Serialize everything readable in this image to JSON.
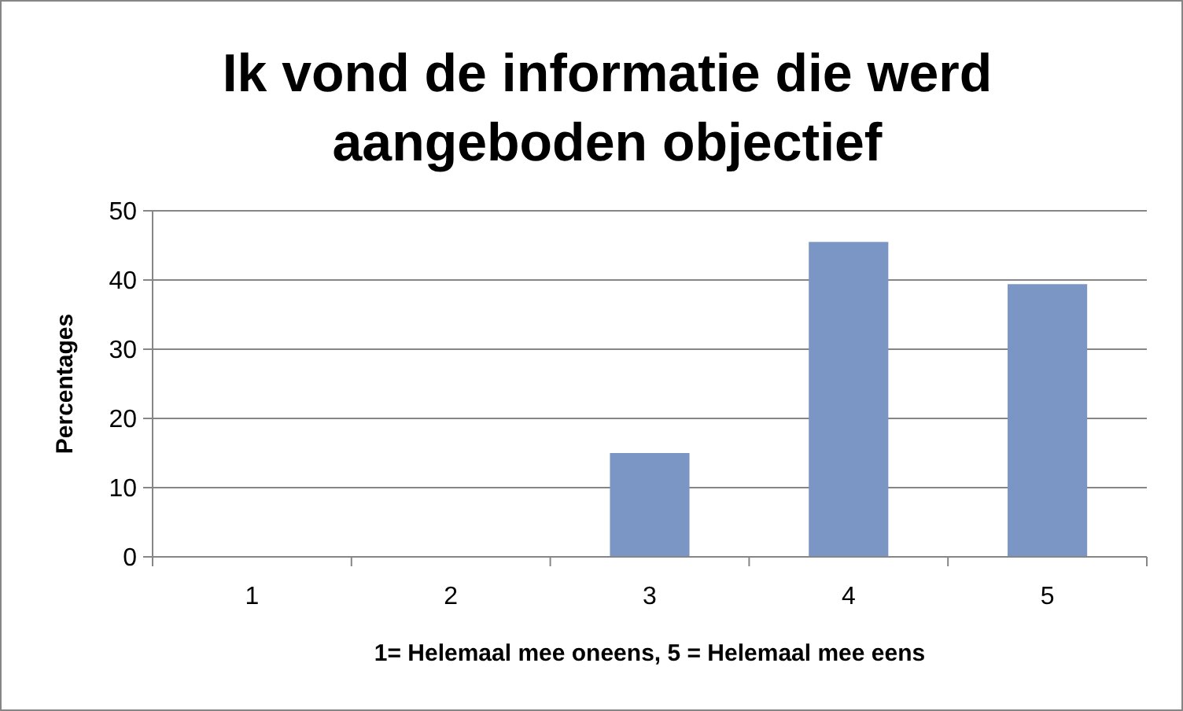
{
  "chart_data": {
    "type": "bar",
    "title": "Ik vond de informatie die werd aangeboden objectief",
    "xlabel": "1= Helemaal mee oneens, 5 = Helemaal mee eens",
    "ylabel": "Percentages",
    "categories": [
      "1",
      "2",
      "3",
      "4",
      "5"
    ],
    "values": [
      0,
      0,
      15,
      45.5,
      39.4
    ],
    "color": "#7b96c4",
    "ylim": [
      0,
      50
    ],
    "yticks": [
      0,
      10,
      20,
      30,
      40,
      50
    ],
    "grid": "y"
  }
}
